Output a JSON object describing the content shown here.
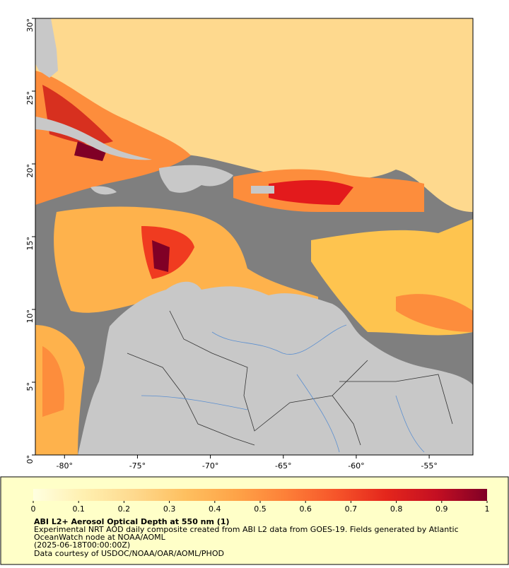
{
  "map": {
    "xlim": [
      -82,
      -52
    ],
    "ylim": [
      0,
      30
    ],
    "xticks": [
      {
        "value": -80,
        "label": "-80°"
      },
      {
        "value": -75,
        "label": "-75°"
      },
      {
        "value": -70,
        "label": "-70°"
      },
      {
        "value": -65,
        "label": "-65°"
      },
      {
        "value": -60,
        "label": "-60°"
      },
      {
        "value": -55,
        "label": "-55°"
      }
    ],
    "yticks": [
      {
        "value": 0,
        "label": "0°"
      },
      {
        "value": 5,
        "label": "5°"
      },
      {
        "value": 10,
        "label": "10°"
      },
      {
        "value": 15,
        "label": "15°"
      },
      {
        "value": 20,
        "label": "20°"
      },
      {
        "value": 25,
        "label": "25°"
      },
      {
        "value": 30,
        "label": "30°"
      }
    ]
  },
  "colorbar": {
    "lim": [
      0,
      1
    ],
    "ticks": [
      0,
      0.1,
      0.2,
      0.3,
      0.4,
      0.5,
      0.6,
      0.7,
      0.8,
      0.9,
      1
    ],
    "colors": [
      "#ffffe0",
      "#fff0b0",
      "#fed98e",
      "#fec060",
      "#fea448",
      "#fd8038",
      "#f6552a",
      "#e4261c",
      "#c40f22",
      "#800026"
    ]
  },
  "caption": {
    "title": "ABI L2+ Aerosol Optical Depth at 550 nm (1)",
    "lines": [
      "Experimental NRT AOD daily composite created from ABI L2 data from GOES-19. Fields generated by Atlantic",
      "OceanWatch node at NOAA/AOML",
      "(2025-06-18T00:00:00Z)",
      "Data courtesy of USDOC/NOAA/OAR/AOML/PHOD"
    ]
  }
}
